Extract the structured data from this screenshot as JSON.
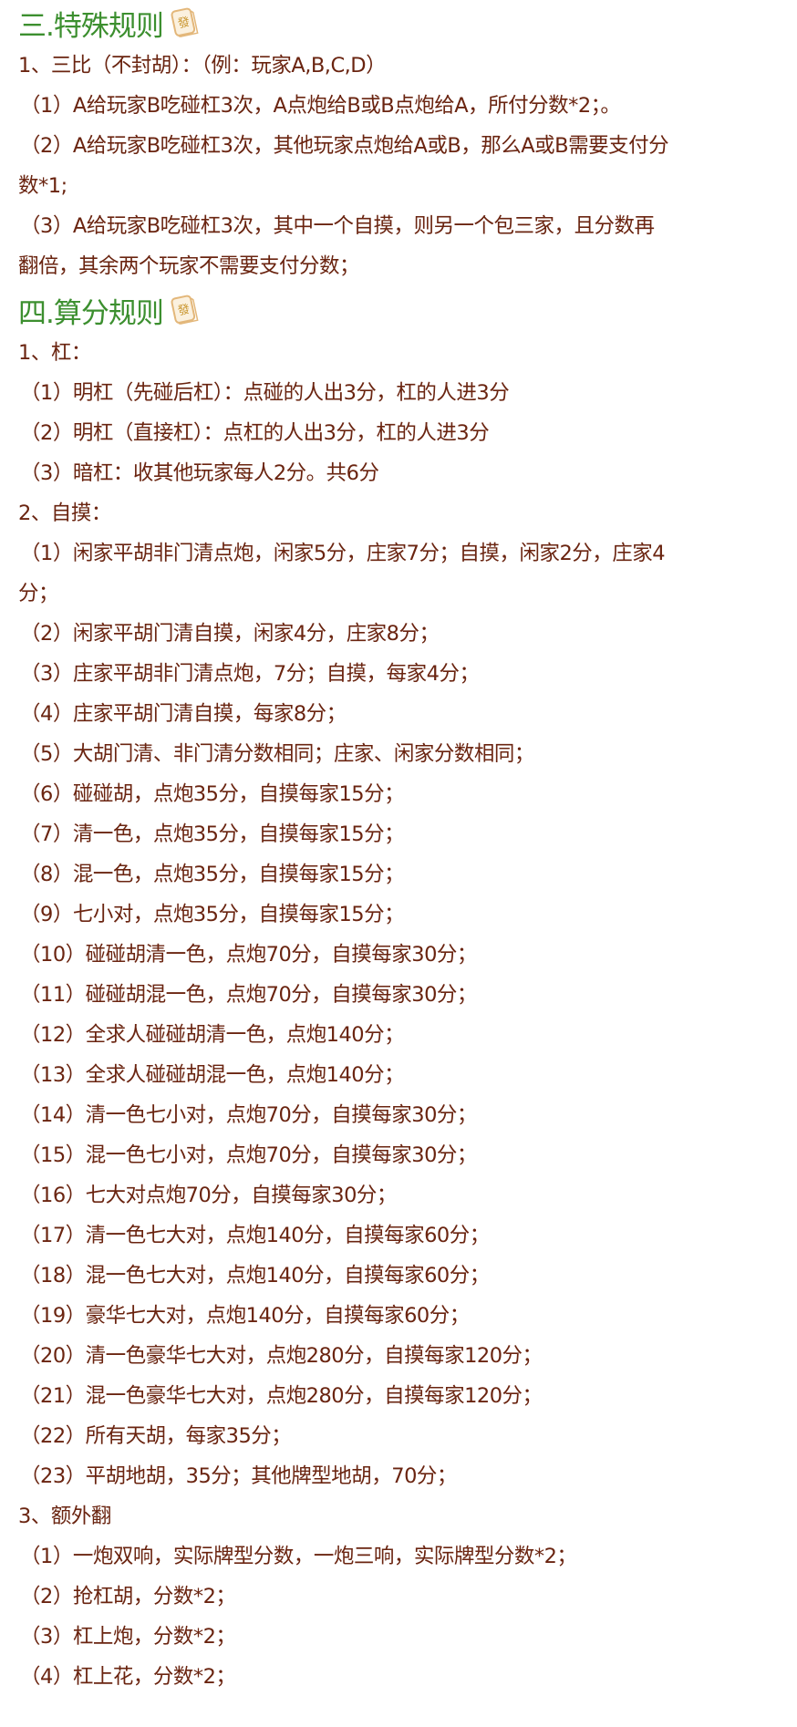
{
  "colors": {
    "heading": "#3c8f2f",
    "text": "#6a2410",
    "tile_border": "#e3b77a",
    "tile_fill": "#fbf1df"
  },
  "tile_icon": {
    "name": "mahjong-fa-tile-icon",
    "glyph": "發"
  },
  "sections": [
    {
      "title": "三.特殊规则",
      "lines": [
        "1、三比（不封胡）：（例：玩家A,B,C,D）",
        "（1）A给玩家B吃碰杠3次，A点炮给B或B点炮给A，所付分数*2；。",
        "（2）A给玩家B吃碰杠3次，其他玩家点炮给A或B，那么A或B需要支付分",
        "数*1;",
        "（3）A给玩家B吃碰杠3次，其中一个自摸，则另一个包三家，且分数再",
        "翻倍，其余两个玩家不需要支付分数；"
      ]
    },
    {
      "title": "四.算分规则",
      "lines": [
        "1、杠：",
        "（1）明杠（先碰后杠）：点碰的人出3分，杠的人进3分",
        "（2）明杠（直接杠）：点杠的人出3分，杠的人进3分",
        "（3）暗杠：收其他玩家每人2分。共6分",
        "2、自摸：",
        "（1）闲家平胡非门清点炮，闲家5分，庄家7分；自摸，闲家2分，庄家4",
        "分；",
        "（2）闲家平胡门清自摸，闲家4分，庄家8分；",
        "（3）庄家平胡非门清点炮，7分；自摸，每家4分；",
        "（4）庄家平胡门清自摸，每家8分；",
        "（5）大胡门清、非门清分数相同；庄家、闲家分数相同；",
        "（6）碰碰胡，点炮35分，自摸每家15分；",
        "（7）清一色，点炮35分，自摸每家15分；",
        "（8）混一色，点炮35分，自摸每家15分；",
        "（9）七小对，点炮35分，自摸每家15分；",
        "（10）碰碰胡清一色，点炮70分，自摸每家30分；",
        "（11）碰碰胡混一色，点炮70分，自摸每家30分；",
        "（12）全求人碰碰胡清一色，点炮140分；",
        "（13）全求人碰碰胡混一色，点炮140分；",
        "（14）清一色七小对，点炮70分，自摸每家30分；",
        "（15）混一色七小对，点炮70分，自摸每家30分；",
        "（16）七大对点炮70分，自摸每家30分；",
        "（17）清一色七大对，点炮140分，自摸每家60分；",
        "（18）混一色七大对，点炮140分，自摸每家60分；",
        "（19）豪华七大对，点炮140分，自摸每家60分；",
        "（20）清一色豪华七大对，点炮280分，自摸每家120分；",
        "（21）混一色豪华七大对，点炮280分，自摸每家120分；",
        "（22）所有天胡，每家35分；",
        "（23）平胡地胡，35分；其他牌型地胡，70分；",
        "3、额外翻",
        "（1）一炮双响，实际牌型分数，一炮三响，实际牌型分数*2；",
        "（2）抢杠胡，分数*2；",
        "（3）杠上炮，分数*2；",
        "（4）杠上花，分数*2；"
      ]
    }
  ]
}
